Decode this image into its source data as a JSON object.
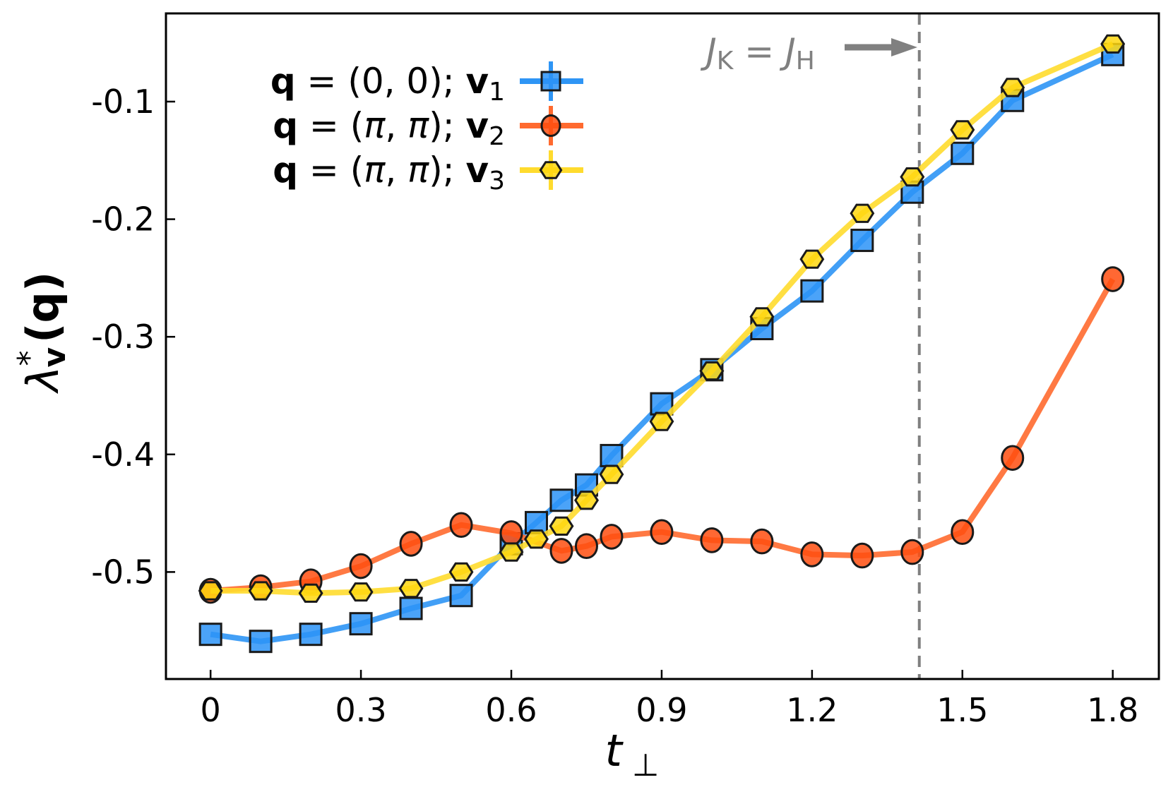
{
  "chart_data": {
    "type": "line",
    "title": "",
    "xlabel": "t_⊥",
    "ylabel": "λ*_v(q)",
    "xlim": [
      -0.089,
      1.892
    ],
    "ylim": [
      -0.591,
      -0.025
    ],
    "grid": false,
    "legend_position": "upper left",
    "xticks": [
      0,
      0.3,
      0.6,
      0.9,
      1.2,
      1.5,
      1.8
    ],
    "xtick_labels": [
      "0",
      "0.3",
      "0.6",
      "0.9",
      "1.2",
      "1.5",
      "1.8"
    ],
    "yticks": [
      -0.1,
      -0.2,
      -0.3,
      -0.4,
      -0.5
    ],
    "ytick_labels": [
      "-0.1",
      "-0.2",
      "-0.3",
      "-0.4",
      "-0.5"
    ],
    "series": [
      {
        "name": "q = (0, 0); v1",
        "label_parts": {
          "q": "q",
          "eq": " = ",
          "qval": "(0, 0); ",
          "v": "v",
          "sub": "1"
        },
        "color": "#2e95f5",
        "marker": "square",
        "marker_fill": "#2b93f7",
        "x": [
          0,
          0.1,
          0.2,
          0.3,
          0.4,
          0.5,
          0.6,
          0.65,
          0.7,
          0.75,
          0.8,
          0.9,
          1.0,
          1.1,
          1.2,
          1.3,
          1.4,
          1.5,
          1.6,
          1.8
        ],
        "values": [
          -0.553,
          -0.559,
          -0.553,
          -0.544,
          -0.531,
          -0.52,
          -0.476,
          -0.458,
          -0.439,
          -0.426,
          -0.401,
          -0.357,
          -0.328,
          -0.293,
          -0.261,
          -0.218,
          -0.177,
          -0.144,
          -0.099,
          -0.06
        ]
      },
      {
        "name": "q = (π, π); v2",
        "label_parts": {
          "q": "q",
          "eq": " = ",
          "qval": "(π, π); ",
          "v": "v",
          "sub": "2"
        },
        "color": "#ff6a2f",
        "marker": "circle",
        "marker_fill": "#ff4d0f",
        "x": [
          0,
          0.1,
          0.2,
          0.3,
          0.4,
          0.5,
          0.6,
          0.7,
          0.75,
          0.8,
          0.9,
          1.0,
          1.1,
          1.2,
          1.3,
          1.4,
          1.5,
          1.6,
          1.8
        ],
        "values": [
          -0.516,
          -0.513,
          -0.508,
          -0.495,
          -0.476,
          -0.46,
          -0.467,
          -0.482,
          -0.478,
          -0.47,
          -0.466,
          -0.473,
          -0.474,
          -0.485,
          -0.486,
          -0.483,
          -0.466,
          -0.403,
          -0.251
        ]
      },
      {
        "name": "q = (π, π); v3",
        "label_parts": {
          "q": "q",
          "eq": " = ",
          "qval": "(π, π); ",
          "v": "v",
          "sub": "3"
        },
        "color": "#ffdb2e",
        "marker": "hexagon",
        "marker_fill": "#ffd70f",
        "x": [
          0,
          0.1,
          0.2,
          0.3,
          0.4,
          0.5,
          0.6,
          0.65,
          0.7,
          0.75,
          0.8,
          0.9,
          1.0,
          1.1,
          1.2,
          1.3,
          1.4,
          1.5,
          1.6,
          1.8
        ],
        "values": [
          -0.516,
          -0.516,
          -0.518,
          -0.517,
          -0.514,
          -0.5,
          -0.483,
          -0.472,
          -0.461,
          -0.439,
          -0.417,
          -0.372,
          -0.329,
          -0.283,
          -0.234,
          -0.195,
          -0.164,
          -0.124,
          -0.088,
          -0.051
        ]
      }
    ],
    "annotations": [
      {
        "type": "vline",
        "x": 1.414,
        "style": "dashed",
        "color": "#808080"
      },
      {
        "type": "text-arrow",
        "text_parts": {
          "j1": "J",
          "s1": "K",
          "eq": " = ",
          "j2": "J",
          "s2": "H"
        },
        "text": "J_K = J_H →",
        "color": "#808080"
      }
    ]
  }
}
